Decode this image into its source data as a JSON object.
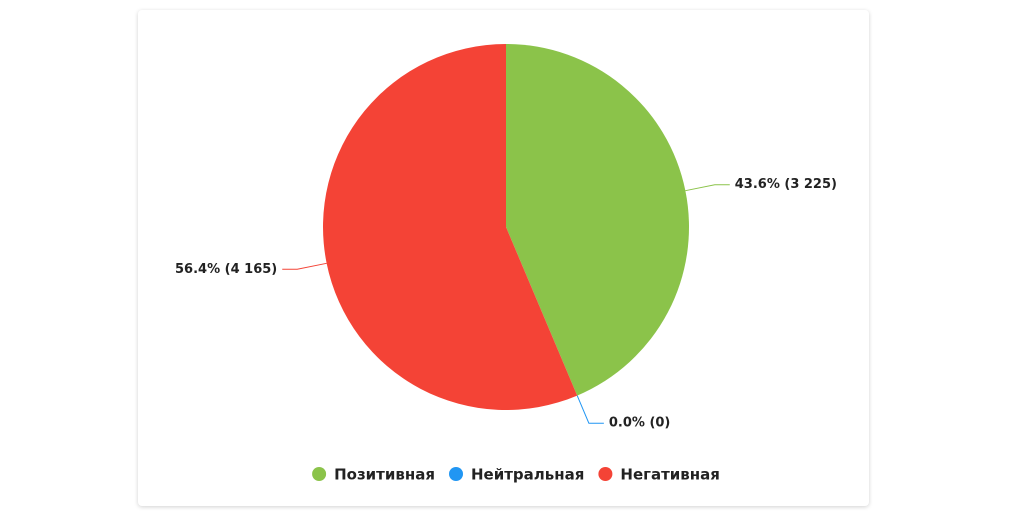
{
  "chart_data": {
    "type": "pie",
    "categories": [
      "Позитивная",
      "Нейтральная",
      "Негативная"
    ],
    "values": [
      3225,
      0,
      4165
    ],
    "value_labels": [
      "43.6% (3 225)",
      "0.0% (0)",
      "56.4% (4 165)"
    ],
    "colors": [
      "#8bc34a",
      "#2196f3",
      "#f44336"
    ]
  }
}
